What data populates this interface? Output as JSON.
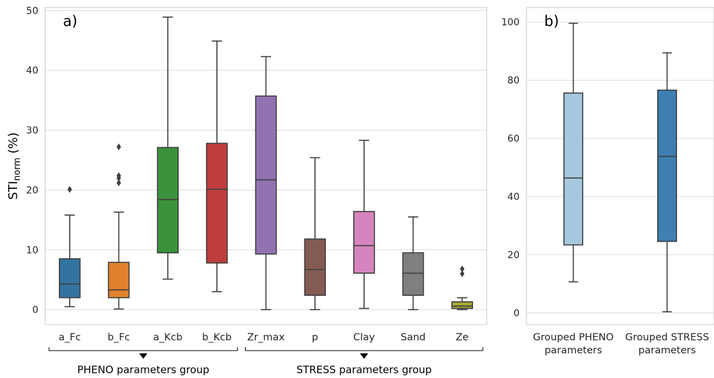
{
  "colors": {
    "grid": "#dcdcdc",
    "frame": "#c8c8c8",
    "box_line": "#3f3f3f",
    "text": "#262626"
  },
  "chart_data": [
    {
      "type": "box",
      "panel_label": "a)",
      "ylabel_main": "STI",
      "ylabel_sub": "norm",
      "ylabel_unit": " (%)",
      "ylim": [
        -2.5,
        50.5
      ],
      "yticks": [
        0,
        10,
        20,
        30,
        40,
        50
      ],
      "grid": "horizontal",
      "categories": [
        "a_Fc",
        "b_Fc",
        "a_Kcb",
        "b_Kcb",
        "Zr_max",
        "p",
        "Clay",
        "Sand",
        "Ze"
      ],
      "boxes": [
        {
          "name": "a_Fc",
          "color": "#3274a1",
          "whisker_low": 0.5,
          "q1": 2.0,
          "median": 4.3,
          "q3": 8.5,
          "whisker_high": 15.8,
          "outliers": [
            20.1
          ]
        },
        {
          "name": "b_Fc",
          "color": "#e1812c",
          "whisker_low": 0.1,
          "q1": 2.0,
          "median": 3.3,
          "q3": 7.9,
          "whisker_high": 16.3,
          "outliers": [
            21.2,
            22.0,
            22.4,
            27.2
          ]
        },
        {
          "name": "a_Kcb",
          "color": "#3a923a",
          "whisker_low": 5.1,
          "q1": 9.5,
          "median": 18.4,
          "q3": 27.1,
          "whisker_high": 48.9,
          "outliers": []
        },
        {
          "name": "b_Kcb",
          "color": "#c03d3e",
          "whisker_low": 3.0,
          "q1": 7.8,
          "median": 20.1,
          "q3": 27.8,
          "whisker_high": 44.9,
          "outliers": []
        },
        {
          "name": "Zr_max",
          "color": "#9372b2",
          "whisker_low": 0.0,
          "q1": 9.3,
          "median": 21.7,
          "q3": 35.7,
          "whisker_high": 42.3,
          "outliers": []
        },
        {
          "name": "p",
          "color": "#845b53",
          "whisker_low": 0.0,
          "q1": 2.4,
          "median": 6.7,
          "q3": 11.8,
          "whisker_high": 25.4,
          "outliers": []
        },
        {
          "name": "Clay",
          "color": "#d684bd",
          "whisker_low": 0.2,
          "q1": 6.1,
          "median": 10.7,
          "q3": 16.4,
          "whisker_high": 28.3,
          "outliers": []
        },
        {
          "name": "Sand",
          "color": "#7f7f7f",
          "whisker_low": 0.0,
          "q1": 2.4,
          "median": 6.1,
          "q3": 9.5,
          "whisker_high": 15.5,
          "outliers": []
        },
        {
          "name": "Ze",
          "color": "#a9aa35",
          "whisker_low": 0.0,
          "q1": 0.2,
          "median": 0.6,
          "q3": 1.3,
          "whisker_high": 2.0,
          "outliers": [
            6.0,
            6.8
          ]
        }
      ],
      "groups": [
        {
          "label": "PHENO parameters group",
          "from": 0,
          "to": 3
        },
        {
          "label": "STRESS parameters group",
          "from": 4,
          "to": 8
        }
      ]
    },
    {
      "type": "box",
      "panel_label": "b)",
      "ylim": [
        -4,
        105
      ],
      "yticks": [
        0,
        20,
        40,
        60,
        80,
        100
      ],
      "grid": "horizontal",
      "categories": [
        "Grouped PHENO\nparameters",
        "Grouped STRESS\nparameters"
      ],
      "boxes": [
        {
          "name": "Grouped PHENO parameters",
          "color": "#a6c8de",
          "whisker_low": 10.7,
          "q1": 23.4,
          "median": 46.4,
          "q3": 75.6,
          "whisker_high": 99.6,
          "outliers": []
        },
        {
          "name": "Grouped STRESS parameters",
          "color": "#3f7fb1",
          "whisker_low": 0.4,
          "q1": 24.6,
          "median": 53.8,
          "q3": 76.6,
          "whisker_high": 89.4,
          "outliers": []
        }
      ]
    }
  ]
}
